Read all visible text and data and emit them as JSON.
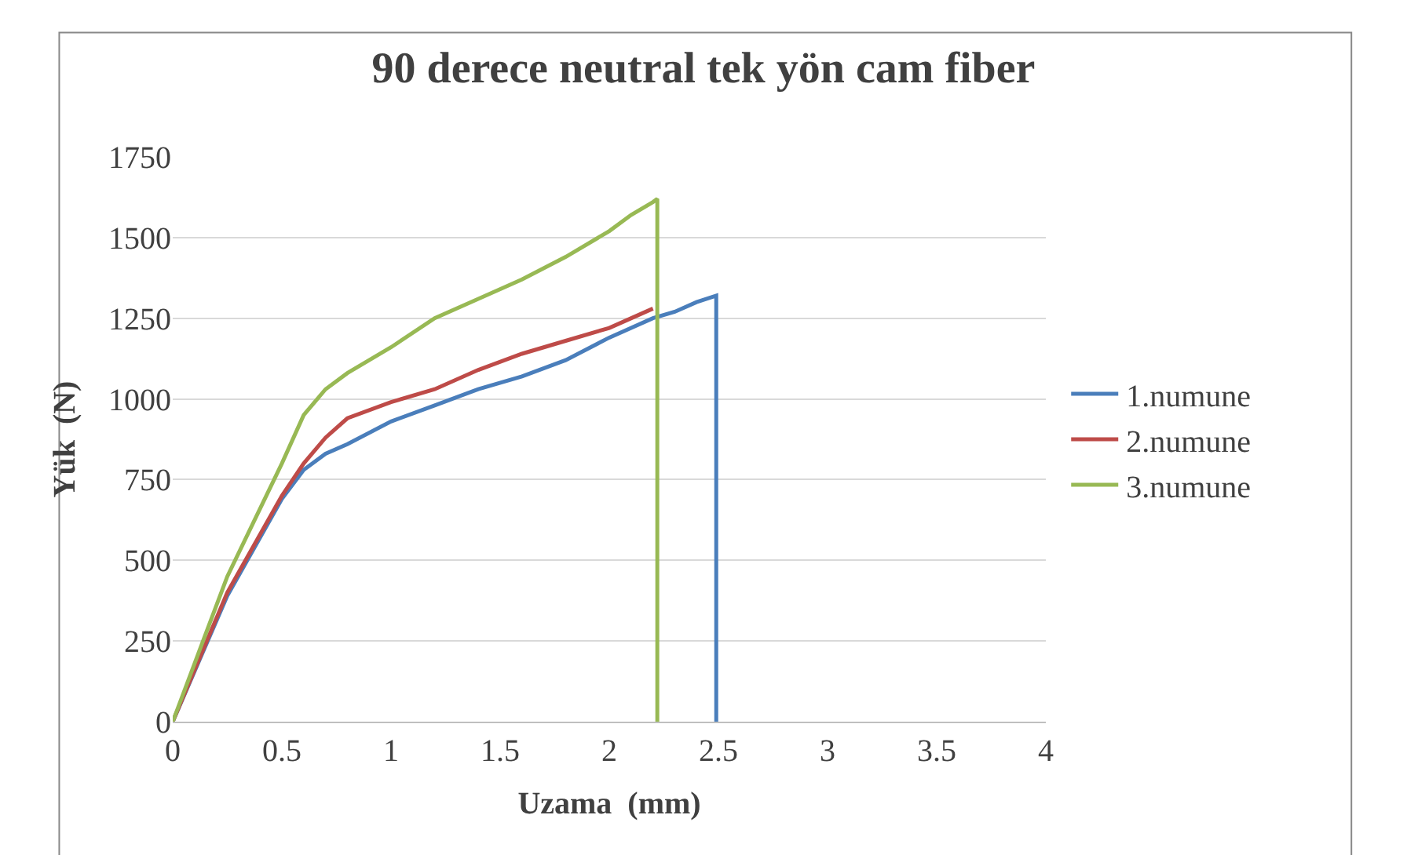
{
  "chart_data": {
    "type": "line",
    "title": "90 derece neutral tek yön cam fiber",
    "xlabel": "Uzama  (mm)",
    "ylabel": "Yük  (N)",
    "xlim": [
      0,
      4
    ],
    "xticks": [
      0,
      0.5,
      1,
      1.5,
      2,
      2.5,
      3,
      3.5,
      4
    ],
    "ylim": [
      0,
      1750
    ],
    "yticks": [
      0,
      250,
      500,
      750,
      1000,
      1250,
      1500,
      1750
    ],
    "grid": "y",
    "legend": "right",
    "marker": "none",
    "line_style": "solid",
    "series": [
      {
        "name": "1.numune",
        "color": "#4a7ebb",
        "x": [
          0,
          0.25,
          0.5,
          0.6,
          0.7,
          0.8,
          1.0,
          1.2,
          1.4,
          1.6,
          1.8,
          2.0,
          2.2,
          2.3,
          2.4,
          2.49,
          2.49
        ],
        "values": [
          0,
          390,
          690,
          780,
          830,
          860,
          930,
          980,
          1030,
          1070,
          1120,
          1190,
          1250,
          1270,
          1300,
          1320,
          0
        ]
      },
      {
        "name": "2.numune",
        "color": "#be4b48",
        "x": [
          0,
          0.25,
          0.5,
          0.6,
          0.7,
          0.8,
          1.0,
          1.2,
          1.4,
          1.6,
          1.8,
          2.0,
          2.2
        ],
        "values": [
          0,
          400,
          700,
          800,
          880,
          940,
          990,
          1030,
          1090,
          1140,
          1180,
          1220,
          1280
        ]
      },
      {
        "name": "3.numune",
        "color": "#98b954",
        "x": [
          0,
          0.25,
          0.5,
          0.6,
          0.7,
          0.8,
          1.0,
          1.2,
          1.4,
          1.6,
          1.8,
          2.0,
          2.1,
          2.2,
          2.22,
          2.22
        ],
        "values": [
          0,
          450,
          800,
          950,
          1030,
          1080,
          1160,
          1250,
          1310,
          1370,
          1440,
          1520,
          1570,
          1610,
          1620,
          0
        ]
      }
    ]
  }
}
